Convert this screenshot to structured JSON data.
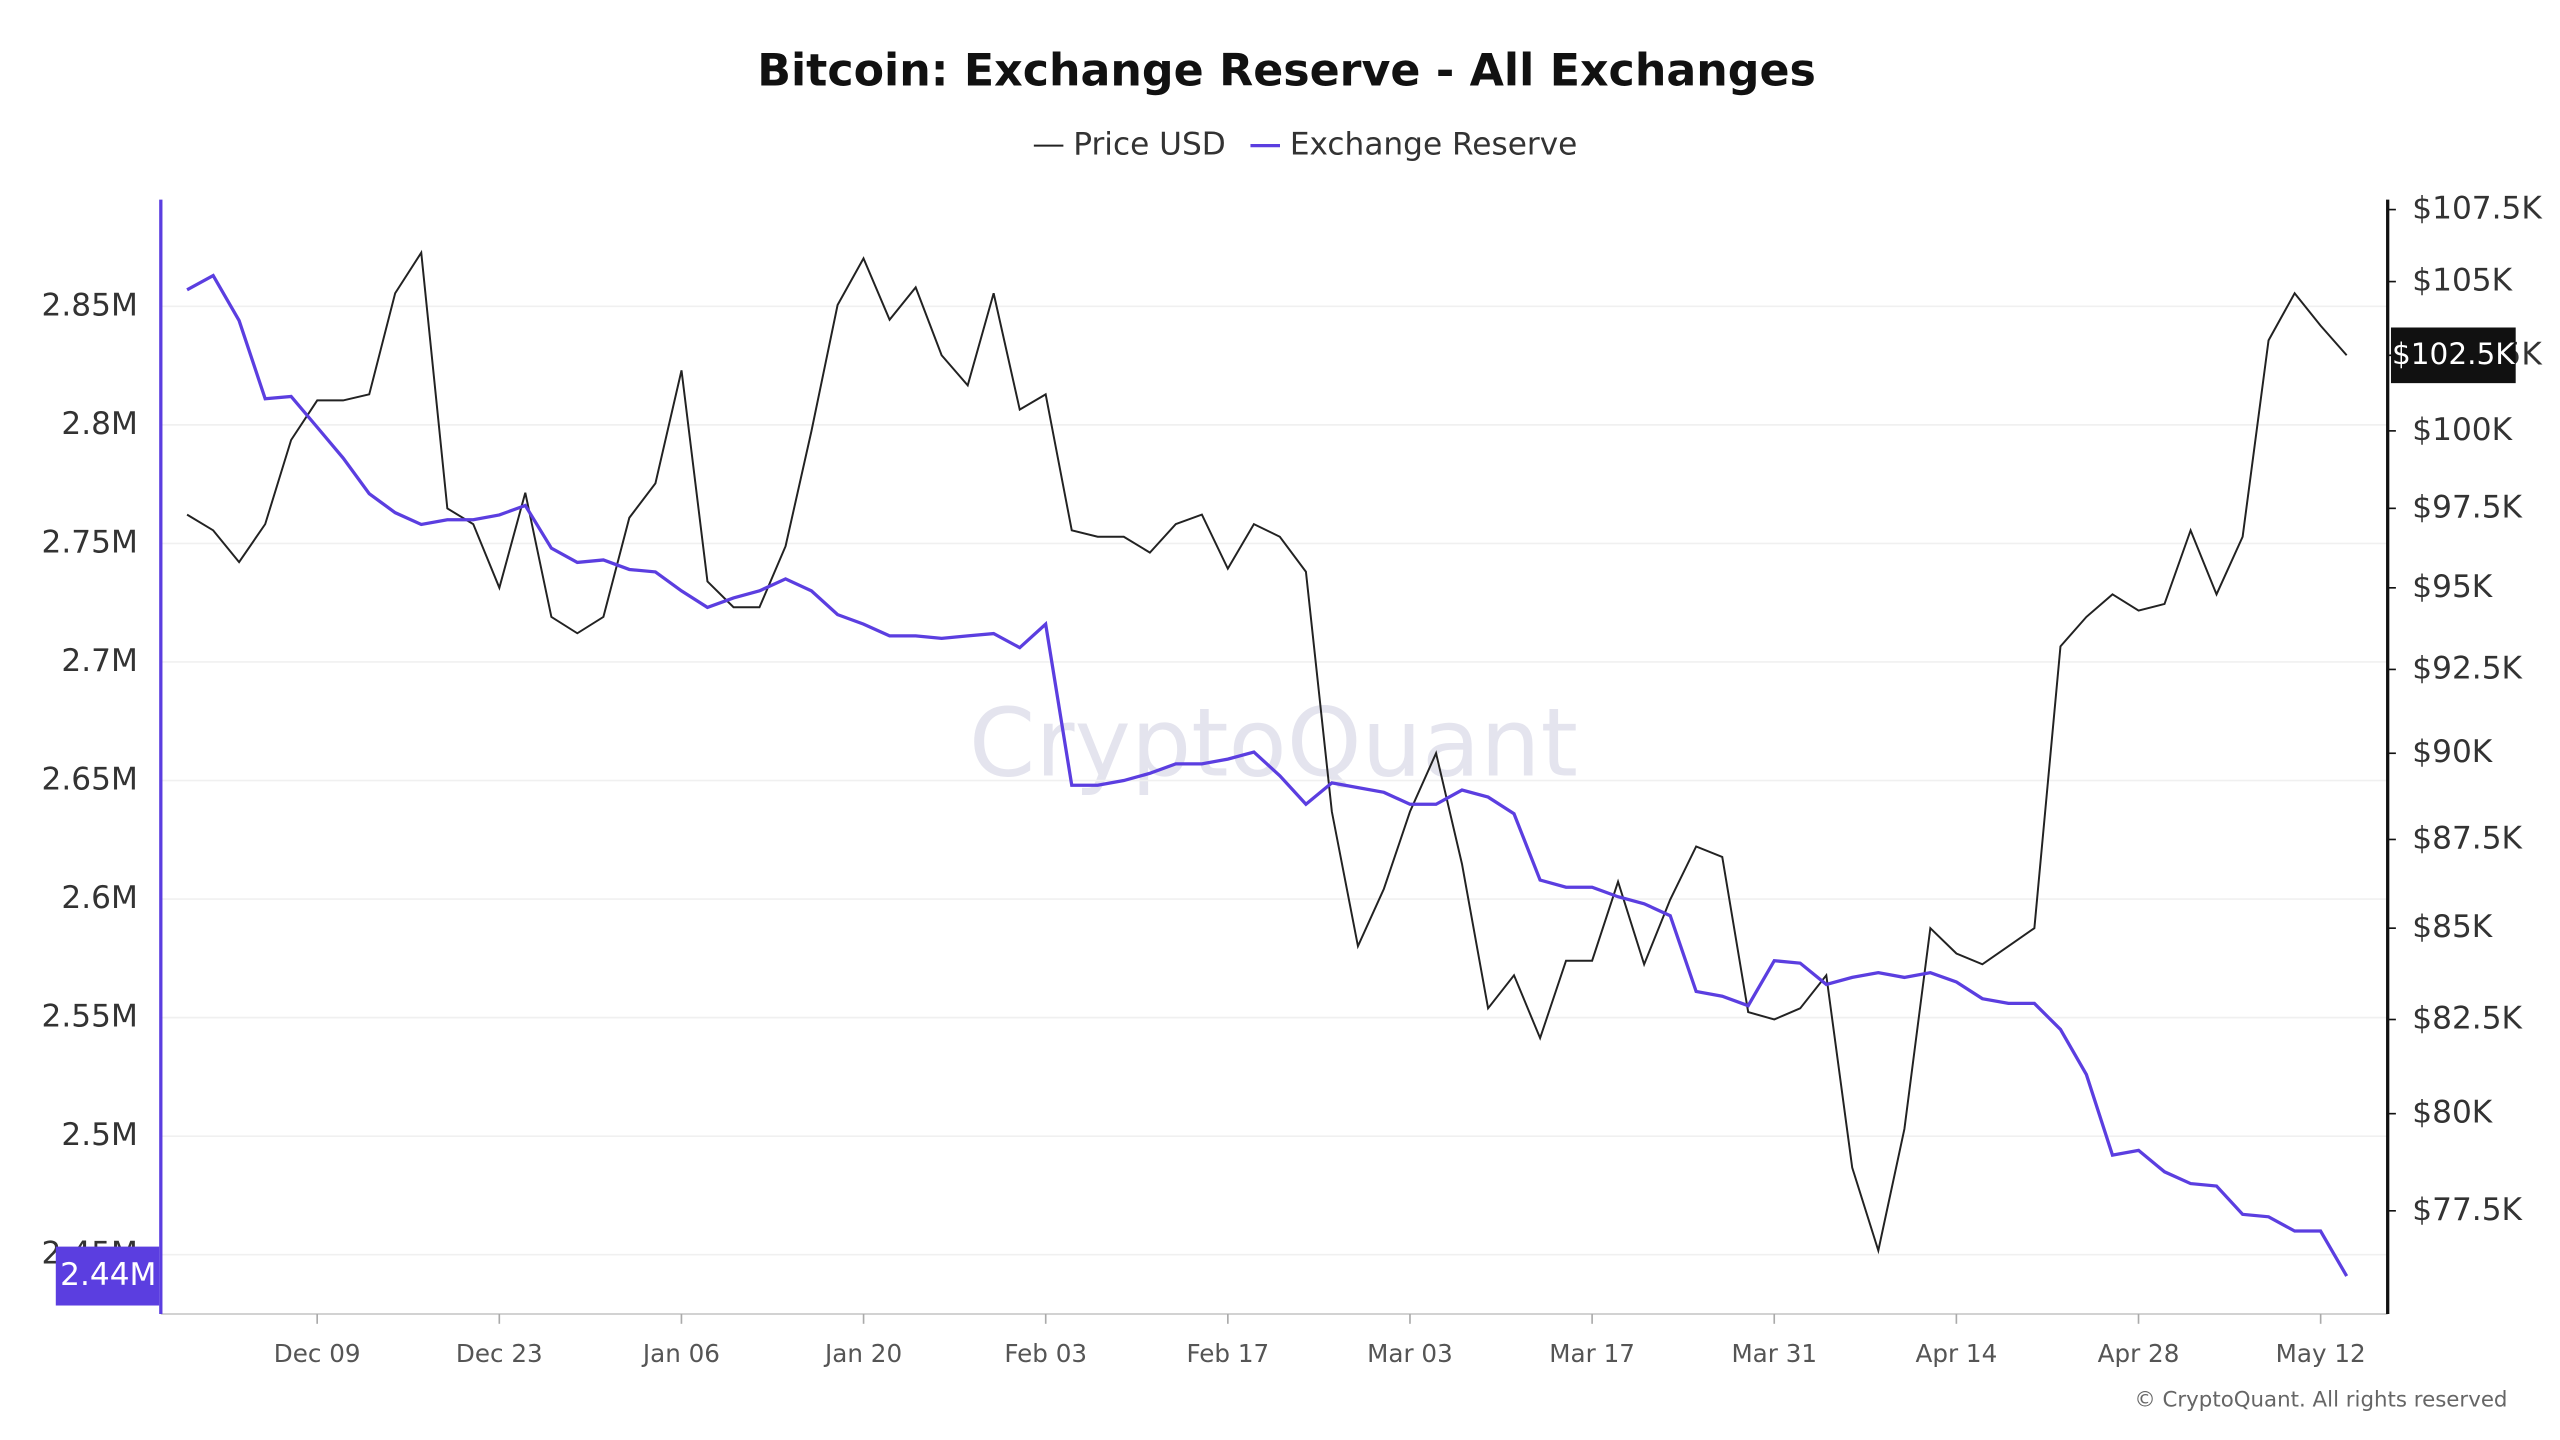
{
  "chart_data": {
    "type": "line",
    "title": "Bitcoin: Exchange Reserve - All Exchanges",
    "watermark": "CryptoQuant",
    "footer": "© CryptoQuant. All rights reserved",
    "categories": [
      null,
      null,
      null,
      null,
      null,
      "Dec 09",
      null,
      null,
      null,
      null,
      null,
      null,
      "Dec 23",
      null,
      null,
      null,
      null,
      null,
      null,
      "Jan 06",
      null,
      null,
      null,
      null,
      null,
      null,
      "Jan 20",
      null,
      null,
      null,
      null,
      null,
      null,
      "Feb 03",
      null,
      null,
      null,
      null,
      null,
      null,
      "Feb 17",
      null,
      null,
      null,
      null,
      null,
      null,
      "Mar 03",
      null,
      null,
      null,
      null,
      null,
      null,
      "Mar 17",
      null,
      null,
      null,
      null,
      null,
      null,
      "Mar 31",
      null,
      null,
      null,
      null,
      null,
      null,
      "Apr 14",
      null,
      null,
      null,
      null,
      null,
      null,
      "Apr 28",
      null,
      null,
      null,
      null,
      null,
      null,
      "May 12",
      null
    ],
    "series": [
      {
        "name": "Price USD",
        "color": "#222222",
        "axis": "y2",
        "values": [
          97300,
          96800,
          95800,
          97000,
          99700,
          101000,
          101000,
          101200,
          104600,
          106000,
          97500,
          97000,
          95000,
          98000,
          94100,
          93600,
          94100,
          97200,
          98300,
          102000,
          95200,
          94400,
          94400,
          96300,
          100000,
          104200,
          105800,
          103700,
          104800,
          102500,
          101500,
          104600,
          100700,
          101200,
          96800,
          96600,
          96600,
          96100,
          97000,
          97300,
          95600,
          97000,
          96600,
          95500,
          88300,
          84500,
          86100,
          88300,
          90000,
          86800,
          82800,
          83700,
          82000,
          84100,
          84100,
          86300,
          84000,
          85800,
          87300,
          87000,
          82700,
          82500,
          82800,
          83700,
          78600,
          76500,
          79600,
          85000,
          84300,
          84000,
          84500,
          85000,
          93200,
          94100,
          94800,
          94300,
          94500,
          96800,
          94800,
          96600,
          103000,
          104600,
          103500,
          102500
        ],
        "last_label": "$102.5K"
      },
      {
        "name": "Exchange Reserve",
        "color": "#5b3ee0",
        "axis": "y",
        "values": [
          2857000,
          2863000,
          2844000,
          2811000,
          2812000,
          2799000,
          2786000,
          2771000,
          2763000,
          2758000,
          2760000,
          2760000,
          2762000,
          2766000,
          2748000,
          2742000,
          2743000,
          2739000,
          2738000,
          2730000,
          2723000,
          2727000,
          2730000,
          2735000,
          2730000,
          2720000,
          2716000,
          2711000,
          2711000,
          2710000,
          2711000,
          2712000,
          2706000,
          2716000,
          2648000,
          2648000,
          2650000,
          2653000,
          2657000,
          2657000,
          2659000,
          2662000,
          2652000,
          2640000,
          2649000,
          2647000,
          2645000,
          2640000,
          2640000,
          2646000,
          2643000,
          2636000,
          2608000,
          2605000,
          2605000,
          2601000,
          2598000,
          2593000,
          2561000,
          2559000,
          2555000,
          2574000,
          2573000,
          2564000,
          2567000,
          2569000,
          2567000,
          2569000,
          2565000,
          2558000,
          2556000,
          2556000,
          2545000,
          2526000,
          2492000,
          2494000,
          2485000,
          2480000,
          2479000,
          2467000,
          2466000,
          2460000,
          2460000,
          2441000
        ],
        "last_label": "2.44M"
      }
    ],
    "ylim": [
      2425000,
      2895000
    ],
    "yticks": [
      {
        "value": 2450000,
        "label": "2.45M"
      },
      {
        "value": 2500000,
        "label": "2.5M"
      },
      {
        "value": 2550000,
        "label": "2.55M"
      },
      {
        "value": 2600000,
        "label": "2.6M"
      },
      {
        "value": 2650000,
        "label": "2.65M"
      },
      {
        "value": 2700000,
        "label": "2.7M"
      },
      {
        "value": 2750000,
        "label": "2.75M"
      },
      {
        "value": 2800000,
        "label": "2.8M"
      },
      {
        "value": 2850000,
        "label": "2.85M"
      }
    ],
    "y2lim": [
      74930,
      107850
    ],
    "y2log": true,
    "y2ticks": [
      {
        "value": 77500,
        "label": "$77.5K"
      },
      {
        "value": 80000,
        "label": "$80K"
      },
      {
        "value": 82500,
        "label": "$82.5K"
      },
      {
        "value": 85000,
        "label": "$85K"
      },
      {
        "value": 87500,
        "label": "$87.5K"
      },
      {
        "value": 90000,
        "label": "$90K"
      },
      {
        "value": 92500,
        "label": "$92.5K"
      },
      {
        "value": 95000,
        "label": "$95K"
      },
      {
        "value": 97500,
        "label": "$97.5K"
      },
      {
        "value": 100000,
        "label": "$100K"
      },
      {
        "value": 102500,
        "label": "$102.5K"
      },
      {
        "value": 105000,
        "label": "$105K"
      },
      {
        "value": 107500,
        "label": "$107.5K"
      }
    ],
    "grid": true,
    "legend": "top"
  }
}
